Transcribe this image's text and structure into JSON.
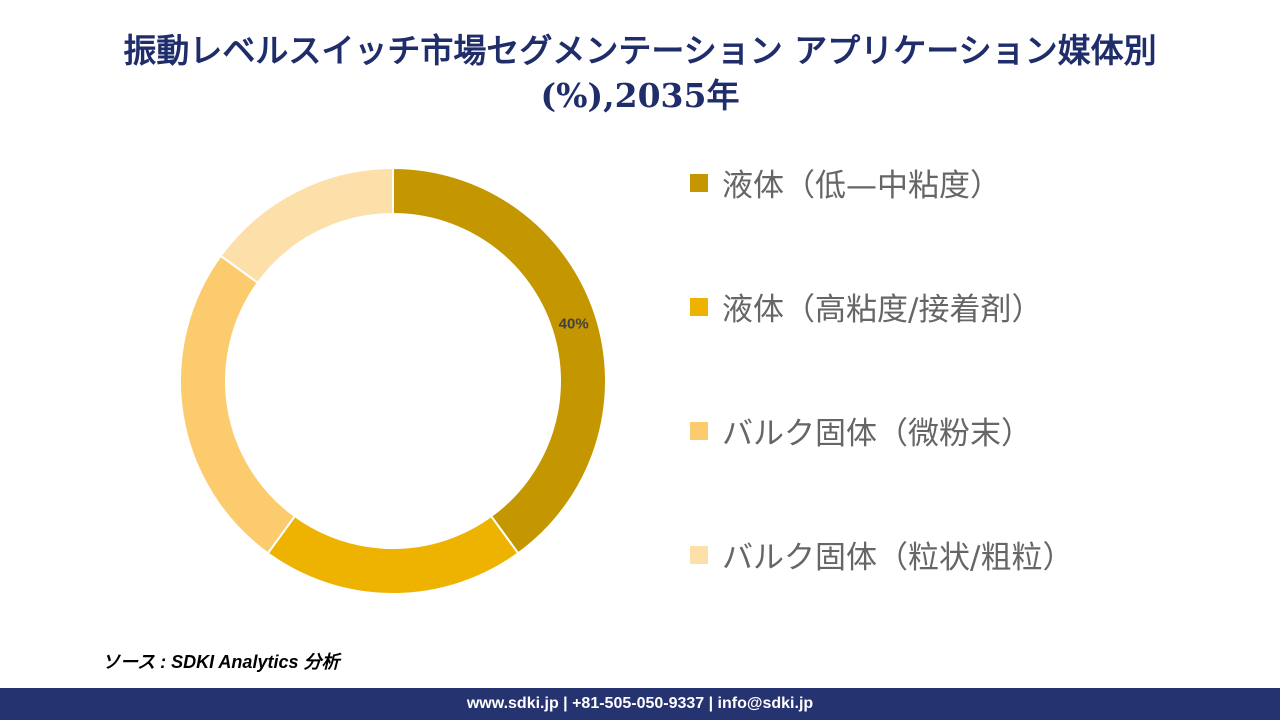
{
  "title_line1": "振動レベルスイッチ市場セグメンテーション アプリケーション媒体別",
  "title_line2": "(%),2035年",
  "chart_data": {
    "type": "pie",
    "subtype": "donut",
    "title": "振動レベルスイッチ市場セグメンテーション アプリケーション媒体別 (%),2035年",
    "categories": [
      "液体（低—中粘度）",
      "液体（高粘度/接着剤）",
      "バルク固体（微粉末）",
      "バルク固体（粒状/粗粒）"
    ],
    "values": [
      40,
      20,
      25,
      15
    ],
    "data_labels": [
      "40%",
      null,
      null,
      null
    ],
    "colors": [
      "#C49700",
      "#EDB300",
      "#FCCB6E",
      "#FDDFAA"
    ],
    "legend_position": "right"
  },
  "source": "ソース : SDKI Analytics 分析",
  "footer": "www.sdki.jp | +81-505-050-9337 | info@sdki.jp"
}
